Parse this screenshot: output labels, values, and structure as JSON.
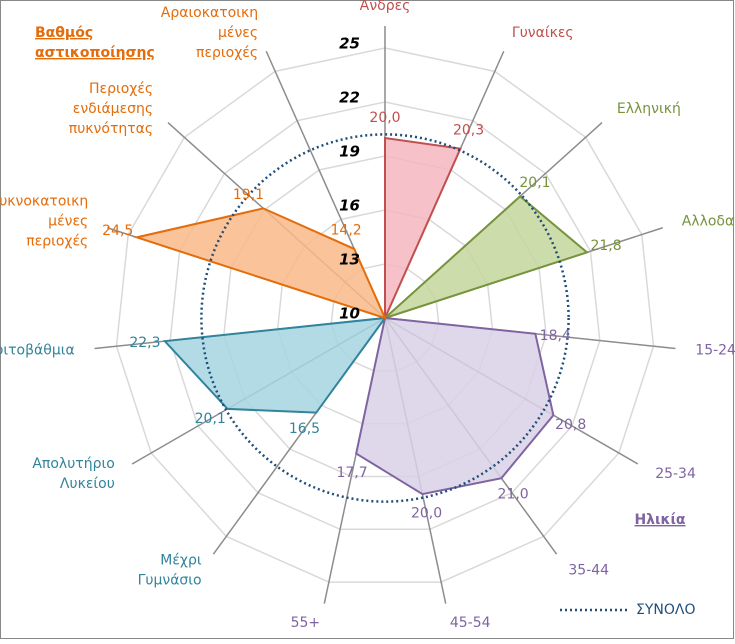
{
  "chart_data": {
    "type": "radar",
    "rlim": [
      10,
      25
    ],
    "rticks": [
      10,
      13,
      16,
      19,
      22,
      25
    ],
    "grid": true,
    "groups": [
      {
        "color": "#c0504d",
        "fill": "#f4b6c0",
        "categories": [
          "Άνδρες",
          "Γυναίκες"
        ],
        "values": [
          20.0,
          20.3
        ],
        "value_labels": [
          "20,0",
          "20,3"
        ]
      },
      {
        "color": "#77933c",
        "fill": "#c3d69b",
        "categories": [
          "Ελληνική",
          "Αλλοδαπή"
        ],
        "values": [
          20.1,
          21.8
        ],
        "value_labels": [
          "20,1",
          "21,8"
        ]
      },
      {
        "name": "Ηλικία",
        "color": "#8064a2",
        "fill": "#d9d0e6",
        "categories": [
          "15-24",
          "25-34",
          "35-44",
          "45-54",
          "55+"
        ],
        "values": [
          18.4,
          20.8,
          21.0,
          20.0,
          17.7
        ],
        "value_labels": [
          "18,4",
          "20,8",
          "21,0",
          "20,0",
          "17,7"
        ]
      },
      {
        "color": "#31849b",
        "fill": "#a5d5e2",
        "categories": [
          "Μέχρι\nΓυμνάσιο",
          "Απολυτήριο\nΛυκείου",
          "Τριτοβάθμια"
        ],
        "values": [
          16.5,
          20.1,
          22.3
        ],
        "value_labels": [
          "16,5",
          "20,1",
          "22,3"
        ]
      },
      {
        "name": "Βαθμός\nαστικοποίησης",
        "color": "#e46c0a",
        "fill": "#f9b987",
        "categories": [
          "Πυκνοκατοικη\nμένες\nπεριοχές",
          "Περιοχές\nενδιάμεσης\nπυκνότητας",
          "Αραιοκατοικη\nμένες\nπεριοχές"
        ],
        "values": [
          24.5,
          19.1,
          14.2
        ],
        "value_labels": [
          "24,5",
          "19,1",
          "14,2"
        ]
      }
    ],
    "total": {
      "name": "ΣΥΝΟΛΟ",
      "color": "#1f4e79",
      "value": 20.2
    }
  }
}
